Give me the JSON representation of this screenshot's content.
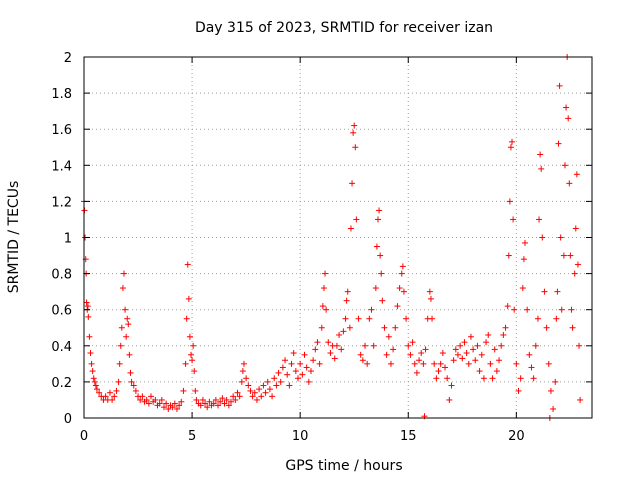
{
  "chart_data": {
    "type": "scatter",
    "title": "Day 315 of 2023, SRMTID for receiver izan",
    "xlabel": "GPS time / hours",
    "ylabel": "SRMTID / TECUs",
    "xlim": [
      0,
      23.5
    ],
    "ylim": [
      0,
      2
    ],
    "xticks": [
      0,
      5,
      10,
      15,
      20
    ],
    "xtick_labels": [
      "0",
      "5",
      "10",
      "15",
      "20"
    ],
    "yticks": [
      0,
      0.2,
      0.4,
      0.6,
      0.8,
      1,
      1.2,
      1.4,
      1.6,
      1.8,
      2
    ],
    "ytick_labels": [
      "0",
      "0.2",
      "0.4",
      "0.6",
      "0.8",
      "1",
      "1.2",
      "1.4",
      "1.6",
      "1.8",
      "2"
    ],
    "grid": true,
    "marker": "+",
    "color": "#ff0000",
    "series": [
      {
        "name": "SRMTID",
        "points": [
          [
            0.0,
            1.2
          ],
          [
            0.02,
            1.15
          ],
          [
            0.05,
            1.0
          ],
          [
            0.08,
            0.88
          ],
          [
            0.1,
            0.8
          ],
          [
            0.12,
            0.64
          ],
          [
            0.15,
            0.6
          ],
          [
            0.18,
            0.62
          ],
          [
            0.2,
            0.56
          ],
          [
            0.25,
            0.45
          ],
          [
            0.3,
            0.36
          ],
          [
            0.35,
            0.3
          ],
          [
            0.4,
            0.26
          ],
          [
            0.45,
            0.22
          ],
          [
            0.5,
            0.2
          ],
          [
            0.55,
            0.18
          ],
          [
            0.6,
            0.16
          ],
          [
            0.7,
            0.14
          ],
          [
            0.8,
            0.12
          ],
          [
            0.9,
            0.1
          ],
          [
            1.0,
            0.12
          ],
          [
            1.1,
            0.1
          ],
          [
            1.2,
            0.14
          ],
          [
            1.3,
            0.1
          ],
          [
            1.4,
            0.12
          ],
          [
            1.5,
            0.15
          ],
          [
            1.6,
            0.2
          ],
          [
            1.65,
            0.3
          ],
          [
            1.7,
            0.4
          ],
          [
            1.75,
            0.5
          ],
          [
            1.8,
            0.72
          ],
          [
            1.85,
            0.8
          ],
          [
            1.9,
            0.6
          ],
          [
            1.95,
            0.45
          ],
          [
            2.0,
            0.55
          ],
          [
            2.05,
            0.52
          ],
          [
            2.1,
            0.35
          ],
          [
            2.15,
            0.25
          ],
          [
            2.2,
            0.2
          ],
          [
            2.3,
            0.18
          ],
          [
            2.4,
            0.15
          ],
          [
            2.5,
            0.12
          ],
          [
            2.6,
            0.1
          ],
          [
            2.7,
            0.12
          ],
          [
            2.8,
            0.09
          ],
          [
            2.9,
            0.1
          ],
          [
            3.0,
            0.08
          ],
          [
            3.1,
            0.12
          ],
          [
            3.2,
            0.09
          ],
          [
            3.3,
            0.1
          ],
          [
            3.4,
            0.07
          ],
          [
            3.5,
            0.08
          ],
          [
            3.6,
            0.1
          ],
          [
            3.7,
            0.06
          ],
          [
            3.8,
            0.08
          ],
          [
            3.9,
            0.05
          ],
          [
            4.0,
            0.07
          ],
          [
            4.1,
            0.06
          ],
          [
            4.2,
            0.08
          ],
          [
            4.3,
            0.05
          ],
          [
            4.4,
            0.07
          ],
          [
            4.5,
            0.09
          ],
          [
            4.6,
            0.15
          ],
          [
            4.7,
            0.3
          ],
          [
            4.75,
            0.55
          ],
          [
            4.8,
            0.85
          ],
          [
            4.85,
            0.66
          ],
          [
            4.9,
            0.45
          ],
          [
            4.95,
            0.35
          ],
          [
            5.0,
            0.32
          ],
          [
            5.05,
            0.4
          ],
          [
            5.1,
            0.26
          ],
          [
            5.15,
            0.15
          ],
          [
            5.2,
            0.1
          ],
          [
            5.3,
            0.08
          ],
          [
            5.4,
            0.07
          ],
          [
            5.5,
            0.1
          ],
          [
            5.6,
            0.08
          ],
          [
            5.7,
            0.06
          ],
          [
            5.8,
            0.09
          ],
          [
            5.9,
            0.07
          ],
          [
            6.0,
            0.08
          ],
          [
            6.1,
            0.1
          ],
          [
            6.2,
            0.07
          ],
          [
            6.3,
            0.09
          ],
          [
            6.4,
            0.11
          ],
          [
            6.5,
            0.08
          ],
          [
            6.6,
            0.1
          ],
          [
            6.7,
            0.07
          ],
          [
            6.8,
            0.09
          ],
          [
            6.9,
            0.12
          ],
          [
            7.0,
            0.1
          ],
          [
            7.1,
            0.14
          ],
          [
            7.2,
            0.12
          ],
          [
            7.3,
            0.2
          ],
          [
            7.35,
            0.26
          ],
          [
            7.4,
            0.3
          ],
          [
            7.5,
            0.22
          ],
          [
            7.6,
            0.18
          ],
          [
            7.7,
            0.15
          ],
          [
            7.8,
            0.12
          ],
          [
            7.9,
            0.14
          ],
          [
            8.0,
            0.1
          ],
          [
            8.1,
            0.16
          ],
          [
            8.2,
            0.12
          ],
          [
            8.3,
            0.18
          ],
          [
            8.4,
            0.14
          ],
          [
            8.5,
            0.2
          ],
          [
            8.6,
            0.16
          ],
          [
            8.7,
            0.12
          ],
          [
            8.8,
            0.22
          ],
          [
            8.9,
            0.18
          ],
          [
            9.0,
            0.25
          ],
          [
            9.1,
            0.2
          ],
          [
            9.2,
            0.28
          ],
          [
            9.3,
            0.32
          ],
          [
            9.4,
            0.24
          ],
          [
            9.5,
            0.18
          ],
          [
            9.6,
            0.3
          ],
          [
            9.7,
            0.36
          ],
          [
            9.8,
            0.26
          ],
          [
            9.9,
            0.22
          ],
          [
            10.0,
            0.3
          ],
          [
            10.1,
            0.24
          ],
          [
            10.2,
            0.35
          ],
          [
            10.3,
            0.28
          ],
          [
            10.4,
            0.2
          ],
          [
            10.5,
            0.26
          ],
          [
            10.6,
            0.32
          ],
          [
            10.7,
            0.38
          ],
          [
            10.8,
            0.42
          ],
          [
            10.9,
            0.3
          ],
          [
            11.0,
            0.5
          ],
          [
            11.05,
            0.62
          ],
          [
            11.1,
            0.72
          ],
          [
            11.15,
            0.8
          ],
          [
            11.2,
            0.6
          ],
          [
            11.3,
            0.42
          ],
          [
            11.4,
            0.36
          ],
          [
            11.5,
            0.4
          ],
          [
            11.6,
            0.33
          ],
          [
            11.7,
            0.4
          ],
          [
            11.8,
            0.46
          ],
          [
            11.9,
            0.38
          ],
          [
            12.0,
            0.48
          ],
          [
            12.1,
            0.55
          ],
          [
            12.15,
            0.65
          ],
          [
            12.2,
            0.7
          ],
          [
            12.3,
            0.5
          ],
          [
            12.35,
            1.05
          ],
          [
            12.4,
            1.3
          ],
          [
            12.45,
            1.58
          ],
          [
            12.5,
            1.62
          ],
          [
            12.55,
            1.5
          ],
          [
            12.6,
            1.1
          ],
          [
            12.7,
            0.55
          ],
          [
            12.8,
            0.35
          ],
          [
            12.9,
            0.32
          ],
          [
            13.0,
            0.4
          ],
          [
            13.1,
            0.3
          ],
          [
            13.2,
            0.55
          ],
          [
            13.3,
            0.6
          ],
          [
            13.4,
            0.4
          ],
          [
            13.5,
            0.72
          ],
          [
            13.55,
            0.95
          ],
          [
            13.6,
            1.1
          ],
          [
            13.65,
            1.15
          ],
          [
            13.7,
            0.9
          ],
          [
            13.75,
            0.8
          ],
          [
            13.8,
            0.65
          ],
          [
            13.9,
            0.5
          ],
          [
            14.0,
            0.35
          ],
          [
            14.1,
            0.45
          ],
          [
            14.2,
            0.3
          ],
          [
            14.3,
            0.38
          ],
          [
            14.4,
            0.5
          ],
          [
            14.5,
            0.62
          ],
          [
            14.6,
            0.72
          ],
          [
            14.7,
            0.8
          ],
          [
            14.75,
            0.84
          ],
          [
            14.8,
            0.7
          ],
          [
            14.9,
            0.55
          ],
          [
            15.0,
            0.4
          ],
          [
            15.1,
            0.35
          ],
          [
            15.2,
            0.42
          ],
          [
            15.3,
            0.3
          ],
          [
            15.4,
            0.25
          ],
          [
            15.5,
            0.32
          ],
          [
            15.6,
            0.36
          ],
          [
            15.7,
            0.3
          ],
          [
            15.8,
            0.38
          ],
          [
            15.9,
            0.55
          ],
          [
            16.0,
            0.7
          ],
          [
            16.05,
            0.66
          ],
          [
            16.1,
            0.55
          ],
          [
            16.2,
            0.3
          ],
          [
            16.3,
            0.22
          ],
          [
            16.4,
            0.26
          ],
          [
            16.5,
            0.3
          ],
          [
            16.6,
            0.36
          ],
          [
            16.7,
            0.28
          ],
          [
            16.8,
            0.22
          ],
          [
            16.9,
            0.1
          ],
          [
            17.0,
            0.18
          ],
          [
            17.1,
            0.32
          ],
          [
            17.2,
            0.38
          ],
          [
            17.3,
            0.35
          ],
          [
            17.4,
            0.4
          ],
          [
            17.5,
            0.33
          ],
          [
            17.6,
            0.42
          ],
          [
            17.7,
            0.36
          ],
          [
            17.8,
            0.3
          ],
          [
            17.9,
            0.45
          ],
          [
            18.0,
            0.38
          ],
          [
            18.1,
            0.32
          ],
          [
            18.2,
            0.4
          ],
          [
            18.3,
            0.26
          ],
          [
            18.4,
            0.35
          ],
          [
            18.5,
            0.22
          ],
          [
            18.6,
            0.42
          ],
          [
            18.7,
            0.46
          ],
          [
            18.8,
            0.3
          ],
          [
            18.9,
            0.22
          ],
          [
            19.0,
            0.38
          ],
          [
            19.1,
            0.26
          ],
          [
            19.2,
            0.32
          ],
          [
            19.3,
            0.4
          ],
          [
            19.4,
            0.46
          ],
          [
            19.5,
            0.5
          ],
          [
            19.6,
            0.62
          ],
          [
            19.65,
            0.9
          ],
          [
            19.7,
            1.2
          ],
          [
            19.75,
            1.5
          ],
          [
            19.8,
            1.53
          ],
          [
            19.85,
            1.1
          ],
          [
            19.9,
            0.6
          ],
          [
            20.0,
            0.3
          ],
          [
            20.1,
            0.15
          ],
          [
            20.2,
            0.22
          ],
          [
            20.3,
            0.72
          ],
          [
            20.35,
            0.88
          ],
          [
            20.4,
            0.97
          ],
          [
            20.5,
            0.6
          ],
          [
            20.6,
            0.35
          ],
          [
            20.7,
            0.28
          ],
          [
            20.8,
            0.22
          ],
          [
            20.9,
            0.4
          ],
          [
            21.0,
            0.55
          ],
          [
            21.05,
            1.1
          ],
          [
            21.1,
            1.46
          ],
          [
            21.15,
            1.38
          ],
          [
            21.2,
            1.0
          ],
          [
            21.3,
            0.7
          ],
          [
            21.4,
            0.5
          ],
          [
            21.5,
            0.3
          ],
          [
            21.6,
            0.15
          ],
          [
            21.7,
            0.05
          ],
          [
            21.8,
            0.2
          ],
          [
            21.85,
            0.55
          ],
          [
            21.9,
            0.7
          ],
          [
            21.95,
            1.52
          ],
          [
            22.0,
            1.84
          ],
          [
            22.05,
            1.0
          ],
          [
            22.1,
            0.6
          ],
          [
            22.2,
            0.9
          ],
          [
            22.25,
            1.4
          ],
          [
            22.3,
            1.72
          ],
          [
            22.35,
            2.0
          ],
          [
            22.4,
            1.66
          ],
          [
            22.45,
            1.3
          ],
          [
            22.5,
            0.9
          ],
          [
            22.55,
            0.6
          ],
          [
            22.6,
            0.5
          ],
          [
            22.7,
            0.8
          ],
          [
            22.75,
            1.05
          ],
          [
            22.8,
            1.35
          ],
          [
            22.85,
            0.85
          ],
          [
            22.9,
            0.4
          ],
          [
            22.95,
            0.1
          ],
          [
            15.75,
            0.01
          ],
          [
            21.55,
            0.0
          ]
        ]
      }
    ]
  }
}
